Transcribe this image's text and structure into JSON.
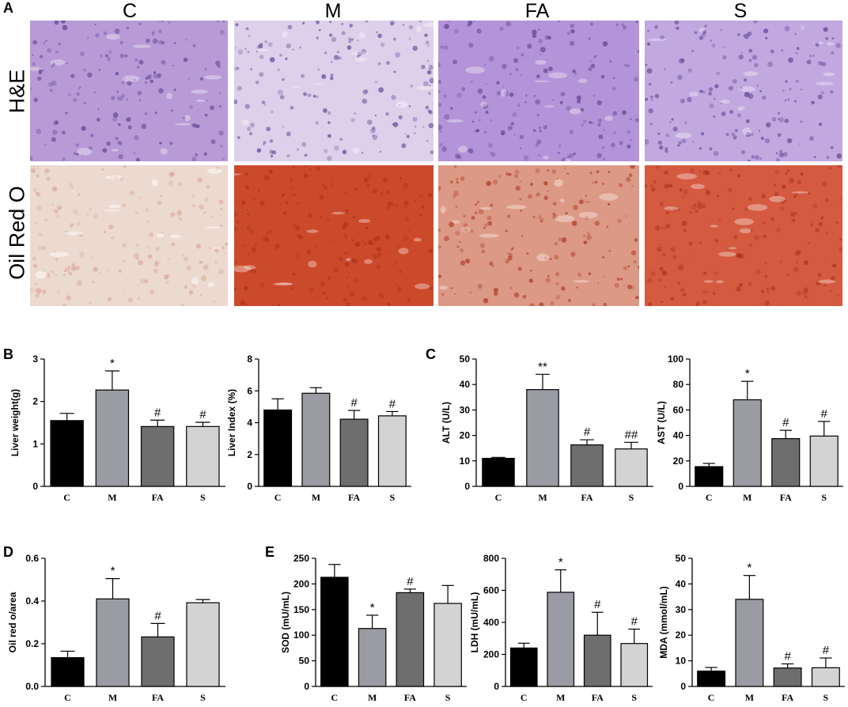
{
  "figure": {
    "panel_letters": [
      "A",
      "B",
      "C",
      "D",
      "E"
    ],
    "histology": {
      "columns": [
        "C",
        "M",
        "FA",
        "S"
      ],
      "rows": [
        {
          "label": "H&E",
          "tile_colors": [
            "#b79ad6",
            "#ddd0ea",
            "#b494d8",
            "#c1a8df"
          ],
          "cell_color": "#8f6cc4"
        },
        {
          "label": "Oil Red O",
          "tile_colors": [
            "#ecd9cf",
            "#cc4a2c",
            "#dc9a86",
            "#d45a40"
          ],
          "cell_color": "#e2a089"
        }
      ]
    }
  },
  "colors": {
    "C": "#000000",
    "M": "#9b9ba3",
    "FA": "#6e6e6e",
    "S": "#d3d3d3"
  },
  "chart_data": [
    {
      "panel": "B",
      "type": "bar",
      "categories": [
        "C",
        "M",
        "FA",
        "S"
      ],
      "values": [
        1.55,
        2.27,
        1.41,
        1.41
      ],
      "errors": [
        0.17,
        0.45,
        0.15,
        0.1
      ],
      "annotations": [
        "",
        "*",
        "#",
        "#"
      ],
      "ylabel": "Liver weight(g)",
      "ylim": [
        0,
        3
      ],
      "yticks": [
        "0",
        "1",
        "2",
        "3"
      ]
    },
    {
      "panel": "B",
      "type": "bar",
      "categories": [
        "C",
        "M",
        "FA",
        "S"
      ],
      "values": [
        4.8,
        5.85,
        4.22,
        4.43
      ],
      "errors": [
        0.7,
        0.35,
        0.55,
        0.27
      ],
      "annotations": [
        "",
        "",
        "#",
        "#"
      ],
      "ylabel": "Liver Index (%)",
      "ylim": [
        0,
        8
      ],
      "yticks": [
        "0",
        "2",
        "4",
        "6",
        "8"
      ]
    },
    {
      "panel": "C",
      "type": "bar",
      "categories": [
        "C",
        "M",
        "FA",
        "S"
      ],
      "values": [
        11,
        38,
        16.3,
        14.7
      ],
      "errors": [
        0.4,
        6,
        2,
        2.6
      ],
      "annotations": [
        "",
        "**",
        "#",
        "##"
      ],
      "ylabel": "ALT (U/L)",
      "ylim": [
        0,
        50
      ],
      "yticks": [
        "0",
        "10",
        "20",
        "30",
        "40",
        "50"
      ]
    },
    {
      "panel": "C",
      "type": "bar",
      "categories": [
        "C",
        "M",
        "FA",
        "S"
      ],
      "values": [
        15.5,
        68,
        37.5,
        39.5
      ],
      "errors": [
        2.5,
        14.5,
        6.5,
        11.5
      ],
      "annotations": [
        "",
        "*",
        "#",
        "#"
      ],
      "ylabel": "AST (U/L)",
      "ylim": [
        0,
        100
      ],
      "yticks": [
        "0",
        "20",
        "40",
        "60",
        "80",
        "100"
      ]
    },
    {
      "panel": "D",
      "type": "bar",
      "categories": [
        "C",
        "M",
        "FA",
        "S"
      ],
      "values": [
        0.135,
        0.41,
        0.232,
        0.392
      ],
      "errors": [
        0.03,
        0.095,
        0.063,
        0.015
      ],
      "annotations": [
        "",
        "*",
        "#",
        ""
      ],
      "ylabel": "Oil red o/area",
      "ylim": [
        0,
        0.6
      ],
      "yticks": [
        "0.0",
        "0.2",
        "0.4",
        "0.6"
      ]
    },
    {
      "panel": "E",
      "type": "bar",
      "categories": [
        "C",
        "M",
        "FA",
        "S"
      ],
      "values": [
        213,
        113,
        183,
        162
      ],
      "errors": [
        25,
        26,
        7,
        35
      ],
      "annotations": [
        "",
        "*",
        "#",
        ""
      ],
      "ylabel": "SOD (mU/mL)",
      "ylim": [
        0,
        250
      ],
      "yticks": [
        "0",
        "50",
        "100",
        "150",
        "200",
        "250"
      ]
    },
    {
      "panel": "E",
      "type": "bar",
      "categories": [
        "C",
        "M",
        "FA",
        "S"
      ],
      "values": [
        240,
        588,
        320,
        268
      ],
      "errors": [
        30,
        140,
        143,
        90
      ],
      "annotations": [
        "",
        "*",
        "#",
        "#"
      ],
      "ylabel": "LDH (mU/mL)",
      "ylim": [
        0,
        800
      ],
      "yticks": [
        "0",
        "200",
        "400",
        "600",
        "800"
      ]
    },
    {
      "panel": "E",
      "type": "bar",
      "categories": [
        "C",
        "M",
        "FA",
        "S"
      ],
      "values": [
        6,
        34,
        7.2,
        7.3
      ],
      "errors": [
        1.4,
        9.3,
        1.6,
        3.8
      ],
      "annotations": [
        "",
        "*",
        "#",
        "#"
      ],
      "ylabel": "MDA (mmol/mL)",
      "ylim": [
        0,
        50
      ],
      "yticks": [
        "0",
        "10",
        "20",
        "30",
        "40",
        "50"
      ]
    }
  ]
}
